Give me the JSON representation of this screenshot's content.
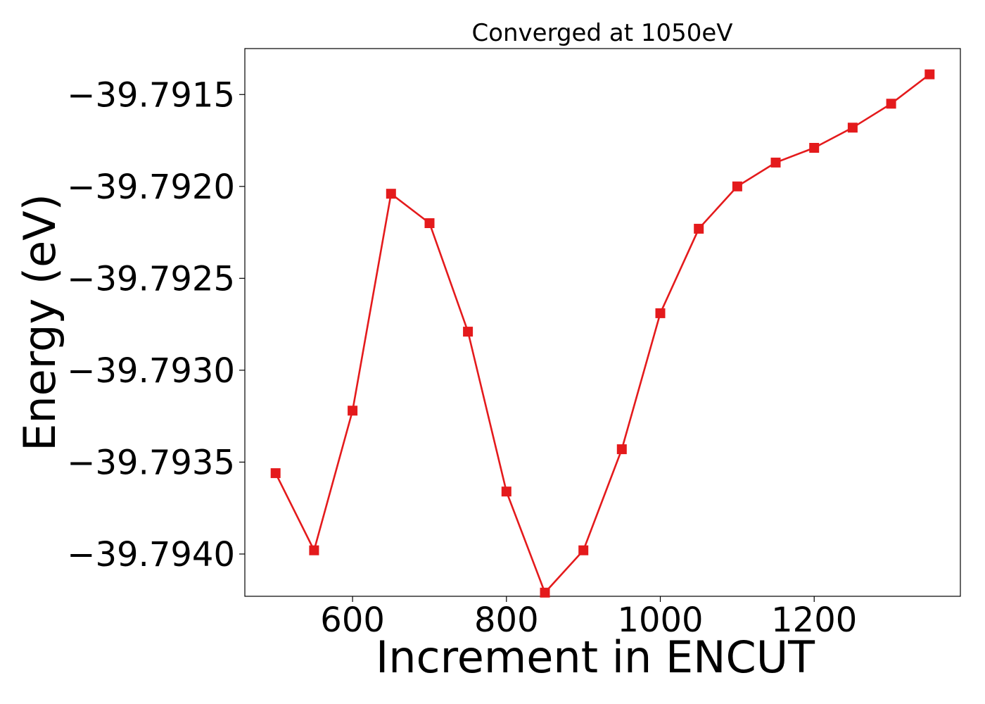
{
  "chart_data": {
    "type": "line",
    "title": "Converged at 1050eV",
    "xlabel": "Increment in ENCUT",
    "ylabel": "Energy (eV)",
    "xlim": [
      460,
      1390
    ],
    "ylim": [
      -39.79423,
      -39.79125
    ],
    "x_ticks": [
      600,
      800,
      1000,
      1200
    ],
    "x_tick_labels": [
      "600",
      "800",
      "1000",
      "1200"
    ],
    "y_ticks": [
      -39.7915,
      -39.792,
      -39.7925,
      -39.793,
      -39.7935,
      -39.794
    ],
    "y_tick_labels": [
      "−39.7915",
      "−39.7920",
      "−39.7925",
      "−39.7930",
      "−39.7935",
      "−39.7940"
    ],
    "grid": false,
    "color": "#e41a1c",
    "marker": "square",
    "series": [
      {
        "x": [
          500,
          550,
          600,
          650,
          700,
          750,
          800,
          850,
          900,
          950,
          1000,
          1050,
          1100,
          1150,
          1200,
          1250,
          1300,
          1350
        ],
        "y": [
          -39.79356,
          -39.79398,
          -39.79322,
          -39.79204,
          -39.7922,
          -39.79279,
          -39.79366,
          -39.79421,
          -39.79398,
          -39.79343,
          -39.79269,
          -39.79223,
          -39.792,
          -39.79187,
          -39.79179,
          -39.79168,
          -39.79155,
          -39.79139
        ]
      }
    ]
  }
}
